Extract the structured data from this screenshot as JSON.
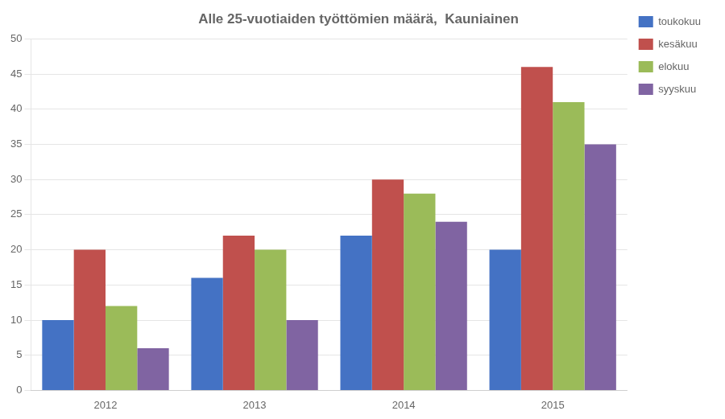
{
  "chart_data": {
    "type": "bar",
    "title": "Alle 25-vuotiaiden työttömien määrä,  Kauniainen",
    "categories": [
      "2012",
      "2013",
      "2014",
      "2015"
    ],
    "series": [
      {
        "name": "toukokuu",
        "color": "#4472C4",
        "values": [
          10,
          16,
          22,
          20
        ]
      },
      {
        "name": "kesäkuu",
        "color": "#C0504D",
        "values": [
          20,
          22,
          30,
          46
        ]
      },
      {
        "name": "elokuu",
        "color": "#9BBB59",
        "values": [
          12,
          20,
          28,
          41
        ]
      },
      {
        "name": "syyskuu",
        "color": "#8064A2",
        "values": [
          6,
          10,
          24,
          35
        ]
      }
    ],
    "ylim": [
      0,
      50
    ],
    "yticks": [
      0,
      5,
      10,
      15,
      20,
      25,
      30,
      35,
      40,
      45,
      50
    ],
    "grid": true,
    "legend": "right"
  }
}
